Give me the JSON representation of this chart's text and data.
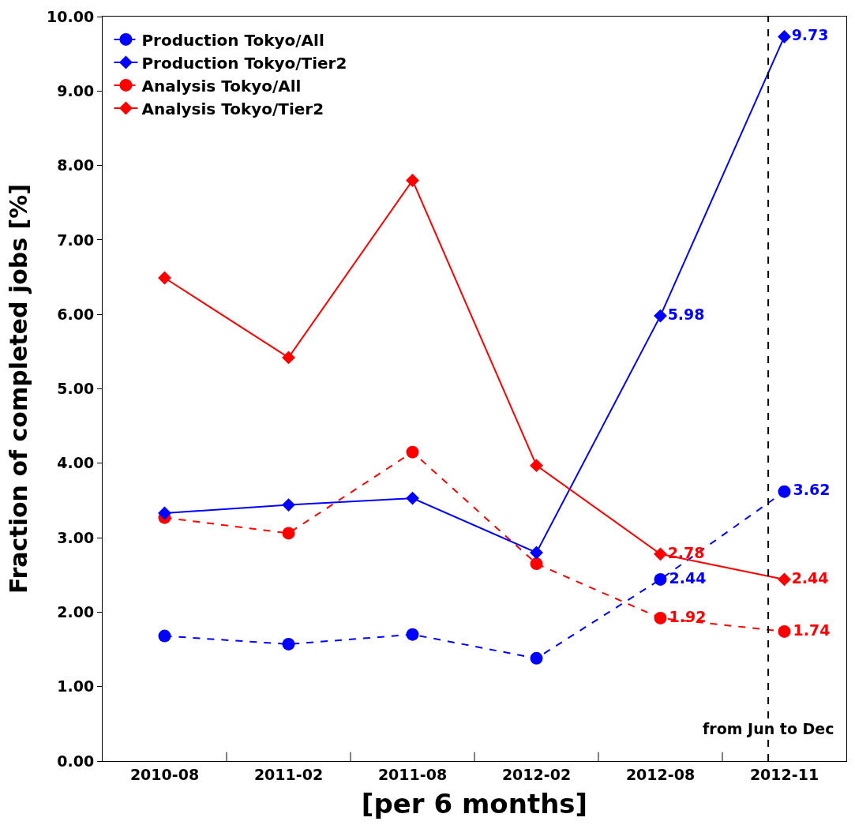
{
  "chart_data": {
    "type": "line",
    "xlabel": "[per 6 months]",
    "ylabel": "Fraction of completed jobs [%]",
    "categories": [
      "2010-08",
      "2011-02",
      "2011-08",
      "2012-02",
      "2012-08",
      "2012-11"
    ],
    "series": [
      {
        "name": "Production Tokyo/All",
        "color": "#0000ff",
        "marker": "circle",
        "line_style": "dashed",
        "values": [
          1.68,
          1.57,
          1.7,
          1.38,
          2.44,
          3.62
        ],
        "value_labels": [
          null,
          null,
          null,
          null,
          "2.44",
          "3.62"
        ]
      },
      {
        "name": "Production Tokyo/Tier2",
        "color": "#0000ff",
        "marker": "diamond",
        "line_style": "solid",
        "values": [
          3.33,
          3.44,
          3.53,
          2.8,
          5.98,
          9.73
        ],
        "value_labels": [
          null,
          null,
          null,
          null,
          "5.98",
          "9.73"
        ]
      },
      {
        "name": "Analysis Tokyo/All",
        "color": "#ff0000",
        "marker": "circle",
        "line_style": "dashed",
        "values": [
          3.27,
          3.06,
          4.15,
          2.65,
          1.92,
          1.74
        ],
        "value_labels": [
          null,
          null,
          null,
          null,
          "1.92",
          "1.74"
        ]
      },
      {
        "name": "Analysis Tokyo/Tier2",
        "color": "#ff0000",
        "marker": "diamond",
        "line_style": "solid",
        "values": [
          6.49,
          5.42,
          7.8,
          3.97,
          2.78,
          2.44
        ],
        "value_labels": [
          null,
          null,
          null,
          null,
          "2.78",
          "2.44"
        ]
      }
    ],
    "ylim": [
      0,
      10
    ],
    "yticks": [
      {
        "value": 0,
        "label": "0.00"
      },
      {
        "value": 1,
        "label": "1.00"
      },
      {
        "value": 2,
        "label": "2.00"
      },
      {
        "value": 3,
        "label": "3.00"
      },
      {
        "value": 4,
        "label": "4.00"
      },
      {
        "value": 5,
        "label": "5.00"
      },
      {
        "value": 6,
        "label": "6.00"
      },
      {
        "value": 7,
        "label": "7.00"
      },
      {
        "value": 8,
        "label": "8.00"
      },
      {
        "value": 9,
        "label": "9.00"
      },
      {
        "value": 10,
        "label": "10.00"
      }
    ],
    "ref_lines": [
      {
        "axis": "x",
        "value": "2012-11",
        "label": "from Jun to Dec",
        "color": "#000000",
        "line_style": "dashed"
      }
    ],
    "legend": "top left"
  }
}
